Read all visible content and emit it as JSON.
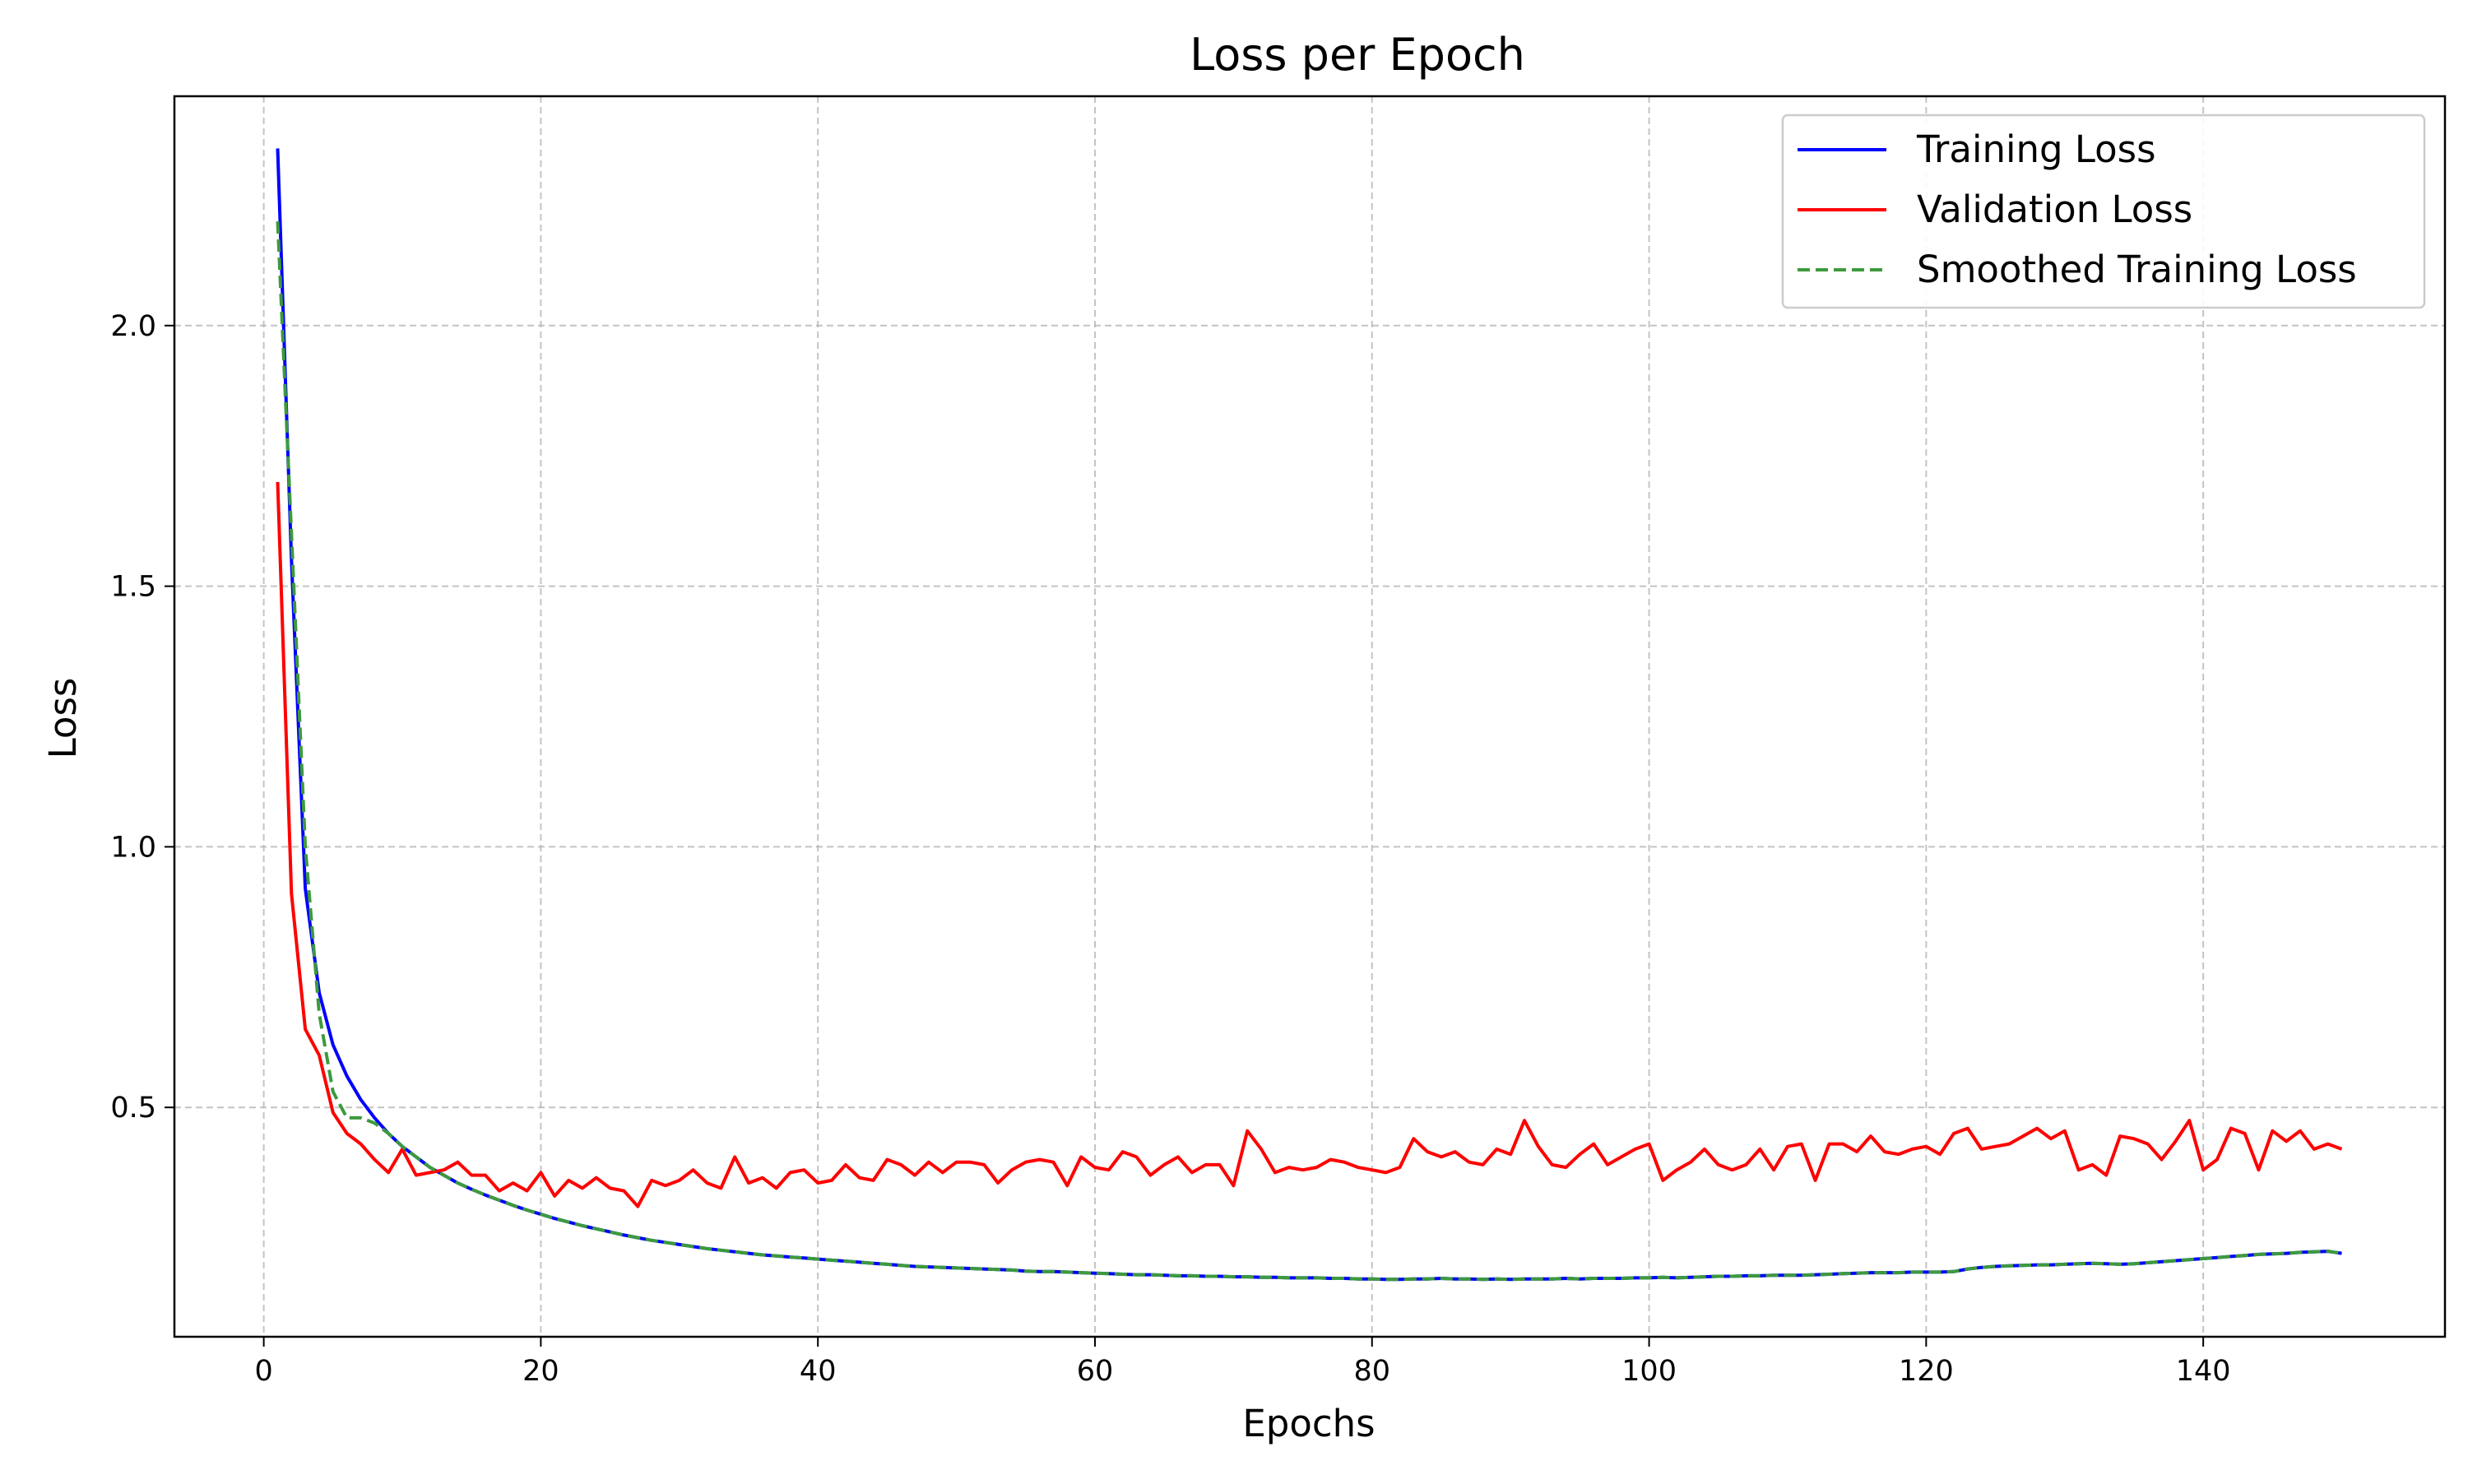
{
  "chart_data": {
    "type": "line",
    "title": "Loss per Epoch",
    "xlabel": "Epochs",
    "ylabel": "Loss",
    "xlim": [
      -6.45,
      157.45
    ],
    "ylim": [
      0.06,
      2.44
    ],
    "x_ticks": [
      0,
      20,
      40,
      60,
      80,
      100,
      120,
      140
    ],
    "x_tick_labels": [
      "0",
      "20",
      "40",
      "60",
      "80",
      "100",
      "120",
      "140"
    ],
    "y_ticks": [
      0.5,
      1.0,
      1.5,
      2.0
    ],
    "y_tick_labels": [
      "0.5",
      "1.0",
      "1.5",
      "2.0"
    ],
    "grid": true,
    "legend_position": "top-right",
    "x": [
      1,
      2,
      3,
      4,
      5,
      6,
      7,
      8,
      9,
      10,
      11,
      12,
      13,
      14,
      15,
      16,
      17,
      18,
      19,
      20,
      21,
      22,
      23,
      24,
      25,
      26,
      27,
      28,
      29,
      30,
      31,
      32,
      33,
      34,
      35,
      36,
      37,
      38,
      39,
      40,
      41,
      42,
      43,
      44,
      45,
      46,
      47,
      48,
      49,
      50,
      51,
      52,
      53,
      54,
      55,
      56,
      57,
      58,
      59,
      60,
      61,
      62,
      63,
      64,
      65,
      66,
      67,
      68,
      69,
      70,
      71,
      72,
      73,
      74,
      75,
      76,
      77,
      78,
      79,
      80,
      81,
      82,
      83,
      84,
      85,
      86,
      87,
      88,
      89,
      90,
      91,
      92,
      93,
      94,
      95,
      96,
      97,
      98,
      99,
      100,
      101,
      102,
      103,
      104,
      105,
      106,
      107,
      108,
      109,
      110,
      111,
      112,
      113,
      114,
      115,
      116,
      117,
      118,
      119,
      120,
      121,
      122,
      123,
      124,
      125,
      126,
      127,
      128,
      129,
      130,
      131,
      132,
      133,
      134,
      135,
      136,
      137,
      138,
      139,
      140,
      141,
      142,
      143,
      144,
      145,
      146,
      147,
      148,
      149,
      150
    ],
    "series": [
      {
        "name": "Training Loss",
        "color": "#0000ff",
        "style": "solid",
        "values": [
          2.34,
          1.55,
          0.92,
          0.72,
          0.62,
          0.56,
          0.515,
          0.48,
          0.45,
          0.425,
          0.405,
          0.385,
          0.37,
          0.355,
          0.343,
          0.332,
          0.322,
          0.312,
          0.303,
          0.295,
          0.287,
          0.28,
          0.273,
          0.267,
          0.261,
          0.255,
          0.25,
          0.245,
          0.241,
          0.237,
          0.233,
          0.229,
          0.226,
          0.223,
          0.22,
          0.217,
          0.215,
          0.213,
          0.211,
          0.209,
          0.207,
          0.205,
          0.203,
          0.201,
          0.199,
          0.197,
          0.195,
          0.194,
          0.193,
          0.192,
          0.191,
          0.19,
          0.189,
          0.188,
          0.186,
          0.185,
          0.185,
          0.184,
          0.183,
          0.182,
          0.181,
          0.18,
          0.179,
          0.179,
          0.178,
          0.177,
          0.177,
          0.176,
          0.176,
          0.175,
          0.175,
          0.174,
          0.174,
          0.173,
          0.173,
          0.173,
          0.172,
          0.172,
          0.171,
          0.171,
          0.17,
          0.17,
          0.171,
          0.171,
          0.172,
          0.171,
          0.171,
          0.17,
          0.171,
          0.17,
          0.171,
          0.171,
          0.171,
          0.172,
          0.171,
          0.172,
          0.172,
          0.172,
          0.173,
          0.173,
          0.174,
          0.173,
          0.174,
          0.175,
          0.176,
          0.176,
          0.177,
          0.177,
          0.178,
          0.178,
          0.178,
          0.179,
          0.18,
          0.181,
          0.182,
          0.183,
          0.183,
          0.183,
          0.184,
          0.184,
          0.184,
          0.185,
          0.19,
          0.193,
          0.195,
          0.196,
          0.197,
          0.198,
          0.198,
          0.199,
          0.2,
          0.201,
          0.2,
          0.199,
          0.2,
          0.202,
          0.204,
          0.206,
          0.208,
          0.21,
          0.212,
          0.214,
          0.216,
          0.218,
          0.219,
          0.22,
          0.222,
          0.223,
          0.224,
          0.22
        ]
      },
      {
        "name": "Validation Loss",
        "color": "#ff0000",
        "style": "solid",
        "values": [
          1.7,
          0.91,
          0.65,
          0.6,
          0.49,
          0.45,
          0.43,
          0.4,
          0.375,
          0.42,
          0.37,
          0.375,
          0.38,
          0.395,
          0.37,
          0.37,
          0.34,
          0.355,
          0.34,
          0.375,
          0.33,
          0.36,
          0.345,
          0.365,
          0.345,
          0.34,
          0.31,
          0.36,
          0.35,
          0.36,
          0.38,
          0.355,
          0.345,
          0.405,
          0.355,
          0.365,
          0.345,
          0.375,
          0.38,
          0.355,
          0.36,
          0.39,
          0.365,
          0.36,
          0.4,
          0.39,
          0.37,
          0.395,
          0.375,
          0.395,
          0.395,
          0.39,
          0.355,
          0.38,
          0.395,
          0.4,
          0.395,
          0.35,
          0.405,
          0.385,
          0.38,
          0.415,
          0.405,
          0.37,
          0.39,
          0.405,
          0.375,
          0.39,
          0.39,
          0.35,
          0.455,
          0.42,
          0.375,
          0.385,
          0.38,
          0.385,
          0.4,
          0.395,
          0.385,
          0.38,
          0.375,
          0.385,
          0.44,
          0.415,
          0.405,
          0.415,
          0.395,
          0.39,
          0.42,
          0.41,
          0.475,
          0.425,
          0.39,
          0.385,
          0.41,
          0.43,
          0.39,
          0.405,
          0.42,
          0.43,
          0.36,
          0.38,
          0.395,
          0.42,
          0.39,
          0.38,
          0.39,
          0.42,
          0.38,
          0.425,
          0.43,
          0.36,
          0.43,
          0.43,
          0.415,
          0.445,
          0.415,
          0.41,
          0.42,
          0.425,
          0.41,
          0.45,
          0.46,
          0.42,
          0.425,
          0.43,
          0.445,
          0.46,
          0.44,
          0.455,
          0.38,
          0.39,
          0.37,
          0.445,
          0.44,
          0.43,
          0.4,
          0.435,
          0.475,
          0.38,
          0.4,
          0.46,
          0.45,
          0.38,
          0.455,
          0.435,
          0.455,
          0.42,
          0.43,
          0.42
        ]
      },
      {
        "name": "Smoothed Training Loss",
        "color": "#3d9a3d",
        "style": "dashed",
        "values": [
          2.2,
          1.6,
          1.0,
          0.68,
          0.53,
          0.48,
          0.48,
          0.47,
          0.45,
          0.425,
          0.405,
          0.385,
          0.37,
          0.355,
          0.343,
          0.332,
          0.322,
          0.312,
          0.303,
          0.295,
          0.287,
          0.28,
          0.273,
          0.267,
          0.261,
          0.255,
          0.25,
          0.245,
          0.241,
          0.237,
          0.233,
          0.229,
          0.226,
          0.223,
          0.22,
          0.217,
          0.215,
          0.213,
          0.211,
          0.209,
          0.207,
          0.205,
          0.203,
          0.201,
          0.199,
          0.197,
          0.195,
          0.194,
          0.193,
          0.192,
          0.191,
          0.19,
          0.189,
          0.188,
          0.186,
          0.185,
          0.185,
          0.184,
          0.183,
          0.182,
          0.181,
          0.18,
          0.179,
          0.179,
          0.178,
          0.177,
          0.177,
          0.176,
          0.176,
          0.175,
          0.175,
          0.174,
          0.174,
          0.173,
          0.173,
          0.173,
          0.172,
          0.172,
          0.171,
          0.171,
          0.17,
          0.17,
          0.171,
          0.171,
          0.172,
          0.171,
          0.171,
          0.17,
          0.171,
          0.17,
          0.171,
          0.171,
          0.171,
          0.172,
          0.171,
          0.172,
          0.172,
          0.172,
          0.173,
          0.173,
          0.174,
          0.173,
          0.174,
          0.175,
          0.176,
          0.176,
          0.177,
          0.177,
          0.178,
          0.178,
          0.178,
          0.179,
          0.18,
          0.181,
          0.182,
          0.183,
          0.183,
          0.183,
          0.184,
          0.184,
          0.184,
          0.185,
          0.19,
          0.193,
          0.195,
          0.196,
          0.197,
          0.198,
          0.198,
          0.199,
          0.2,
          0.201,
          0.2,
          0.199,
          0.2,
          0.202,
          0.204,
          0.206,
          0.208,
          0.21,
          0.212,
          0.214,
          0.216,
          0.218,
          0.219,
          0.22,
          0.222,
          0.223,
          0.224,
          0.22
        ]
      }
    ]
  }
}
